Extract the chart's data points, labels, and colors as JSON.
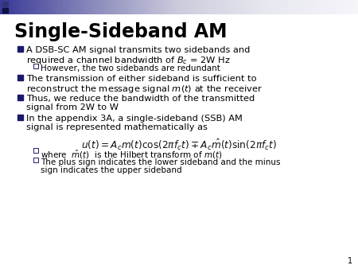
{
  "title": "Single-Sideband AM",
  "background_color": "#ffffff",
  "title_color": "#000000",
  "title_fontsize": 17,
  "body_fontsize": 8.2,
  "sub_fontsize": 7.5,
  "bullet_color": "#1a1a6a",
  "text_color": "#000000",
  "page_number": "1",
  "bullet1_line1": "A DSB-SC AM signal transmits two sidebands and",
  "bullet1_line2": "required a channel bandwidth of $B_c$ = 2W Hz",
  "sub1": "However, the two sidebands are redundant",
  "bullet2_line1": "The transmission of either sideband is sufficient to",
  "bullet2_line2": "reconstruct the message signal $m(t)$ at the receiver",
  "bullet3_line1": "Thus, we reduce the bandwidth of the transmitted",
  "bullet3_line2": "signal from 2W to W",
  "bullet4_line1": "In the appendix 3A, a single-sideband (SSB) AM",
  "bullet4_line2": "signal is represented mathematically as",
  "formula": "$u(t) = A_c m(t)\\cos(2\\pi f_c t) \\mp A_c \\hat{m}(t)\\sin(2\\pi f_c t)$",
  "sub2_a_plain": "where  ",
  "sub2_a_math": "$\\hat{m}(t)$",
  "sub2_a_rest": "  is the Hilbert transform of $m(t)$",
  "sub2_b_line1": "The plus sign indicates the lower sideband and the minus",
  "sub2_b_line2": "sign indicates the upper sideband",
  "header_left_color1": "#3333aa",
  "header_left_color2": "#222266",
  "header_grad_start": "#5555aa",
  "header_grad_end": "#ddddee"
}
